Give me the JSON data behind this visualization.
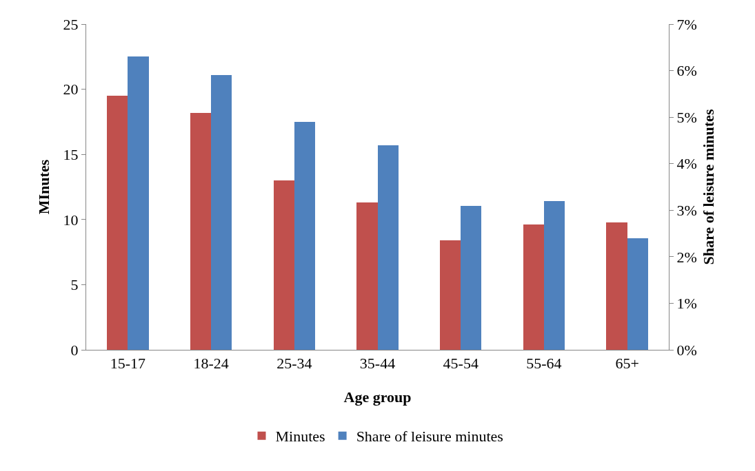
{
  "chart_data": {
    "type": "bar",
    "xlabel": "Age group",
    "ylabel": "MInutes",
    "y2label": "Share of leisure minutes",
    "categories": [
      "15-17",
      "18-24",
      "25-34",
      "35-44",
      "45-54",
      "55-64",
      "65+"
    ],
    "series": [
      {
        "name": "Minutes",
        "color": "#c0504d",
        "values": [
          19.5,
          18.2,
          13.0,
          11.3,
          8.4,
          9.6,
          9.8
        ]
      },
      {
        "name": "Share of leisure minutes",
        "color": "#4f81bd",
        "axis": "y2",
        "values": [
          6.3,
          5.9,
          4.9,
          4.4,
          3.1,
          3.2,
          2.4
        ]
      }
    ],
    "ylim": [
      0,
      25
    ],
    "yticks": [
      0,
      5,
      10,
      15,
      20,
      25
    ],
    "y2lim": [
      0,
      7
    ],
    "y2ticks": [
      {
        "value": 0,
        "label": "0%"
      },
      {
        "value": 1,
        "label": "1%"
      },
      {
        "value": 2,
        "label": "2%"
      },
      {
        "value": 3,
        "label": "3%"
      },
      {
        "value": 4,
        "label": "4%"
      },
      {
        "value": 5,
        "label": "5%"
      },
      {
        "value": 6,
        "label": "6%"
      },
      {
        "value": 7,
        "label": "7%"
      }
    ],
    "grid": false,
    "legend": "bottom"
  }
}
